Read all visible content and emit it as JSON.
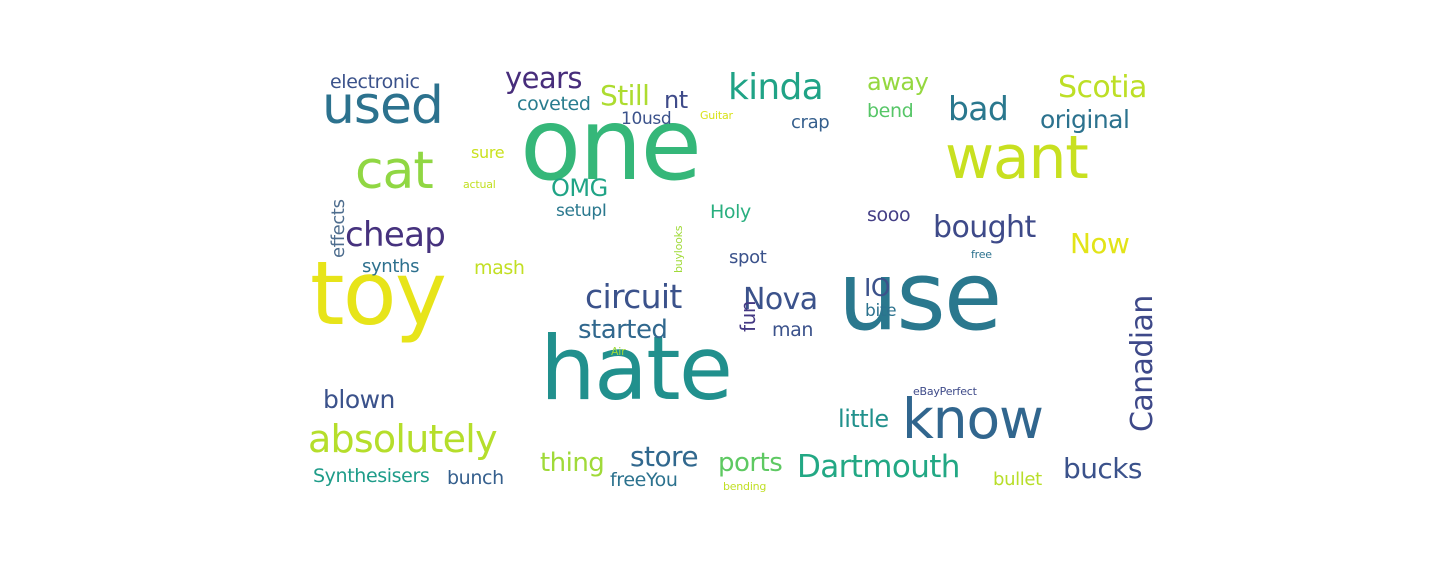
{
  "cloud": {
    "type": "word-cloud",
    "words": [
      {
        "text": "one",
        "color": "#35b779",
        "size": 100
      },
      {
        "text": "use",
        "color": "#2a788e",
        "size": 95
      },
      {
        "text": "hate",
        "color": "#21908d",
        "size": 88
      },
      {
        "text": "toy",
        "color": "#e7e419",
        "size": 88
      },
      {
        "text": "want",
        "color": "#c8e020",
        "size": 60
      },
      {
        "text": "know",
        "color": "#31668e",
        "size": 55
      },
      {
        "text": "used",
        "color": "#2c728e",
        "size": 52
      },
      {
        "text": "cat",
        "color": "#90d743",
        "size": 52
      },
      {
        "text": "absolutely",
        "color": "#b5de2b",
        "size": 38
      },
      {
        "text": "kinda",
        "color": "#20a386",
        "size": 36
      },
      {
        "text": "cheap",
        "color": "#46327e",
        "size": 34
      },
      {
        "text": "circuit",
        "color": "#3b528b",
        "size": 33
      },
      {
        "text": "bad",
        "color": "#2a788e",
        "size": 33
      },
      {
        "text": "Dartmouth",
        "color": "#22a884",
        "size": 31
      },
      {
        "text": "Scotia",
        "color": "#bddf26",
        "size": 30
      },
      {
        "text": "bought",
        "color": "#3e4a89",
        "size": 30
      },
      {
        "text": "Canadian",
        "color": "#3e4989",
        "size": 30
      },
      {
        "text": "Nova",
        "color": "#3b528b",
        "size": 30
      },
      {
        "text": "years",
        "color": "#472d7b",
        "size": 29
      },
      {
        "text": "Still",
        "color": "#addc30",
        "size": 28
      },
      {
        "text": "store",
        "color": "#31688e",
        "size": 28
      },
      {
        "text": "bucks",
        "color": "#3b528b",
        "size": 28
      },
      {
        "text": "Now",
        "color": "#e2e418",
        "size": 28
      },
      {
        "text": "ports",
        "color": "#5ec962",
        "size": 26
      },
      {
        "text": "started",
        "color": "#31688e",
        "size": 26
      },
      {
        "text": "thing",
        "color": "#a0da39",
        "size": 26
      },
      {
        "text": "IO",
        "color": "#3b528b",
        "size": 25
      },
      {
        "text": "original",
        "color": "#2c728e",
        "size": 25
      },
      {
        "text": "blown",
        "color": "#3b528b",
        "size": 25
      },
      {
        "text": "nt",
        "color": "#3e4a89",
        "size": 24
      },
      {
        "text": "OMG",
        "color": "#20a486",
        "size": 24
      },
      {
        "text": "away",
        "color": "#95d840",
        "size": 24
      },
      {
        "text": "little",
        "color": "#21918c",
        "size": 24
      },
      {
        "text": "fun",
        "color": "#443983",
        "size": 20
      },
      {
        "text": "sooo",
        "color": "#433e85",
        "size": 19
      },
      {
        "text": "man",
        "color": "#3b528b",
        "size": 19
      },
      {
        "text": "bend",
        "color": "#56c667",
        "size": 19
      },
      {
        "text": "coveted",
        "color": "#287c8e",
        "size": 19
      },
      {
        "text": "freeYou",
        "color": "#2c728e",
        "size": 19
      },
      {
        "text": "Synthesisers",
        "color": "#1e9c89",
        "size": 19
      },
      {
        "text": "bunch",
        "color": "#355f8d",
        "size": 19
      },
      {
        "text": "Holy",
        "color": "#29af7f",
        "size": 19
      },
      {
        "text": "mash",
        "color": "#c2df23",
        "size": 19
      },
      {
        "text": "electronic",
        "color": "#3b528b",
        "size": 19
      },
      {
        "text": "effects",
        "color": "#4e6d8e",
        "size": 18
      },
      {
        "text": "crap",
        "color": "#355f8d",
        "size": 18
      },
      {
        "text": "spot",
        "color": "#3b528b",
        "size": 18
      },
      {
        "text": "synths",
        "color": "#2d708e",
        "size": 18
      },
      {
        "text": "bullet",
        "color": "#b8de29",
        "size": 18
      },
      {
        "text": "10usd",
        "color": "#3b528b",
        "size": 17
      },
      {
        "text": "setupI",
        "color": "#2a788e",
        "size": 17
      },
      {
        "text": "bite",
        "color": "#2c728e",
        "size": 17
      },
      {
        "text": "sure",
        "color": "#cae11f",
        "size": 16
      },
      {
        "text": "buylooks",
        "color": "#a0da39",
        "size": 11
      },
      {
        "text": "actual",
        "color": "#c2df23",
        "size": 11
      },
      {
        "text": "Guitar",
        "color": "#d8e219",
        "size": 11
      },
      {
        "text": "Air",
        "color": "#9fda3a",
        "size": 11
      },
      {
        "text": "eBayPerfect",
        "color": "#3e4a89",
        "size": 11
      },
      {
        "text": "free",
        "color": "#2c728e",
        "size": 11
      },
      {
        "text": "bending",
        "color": "#c0df25",
        "size": 11
      }
    ]
  }
}
